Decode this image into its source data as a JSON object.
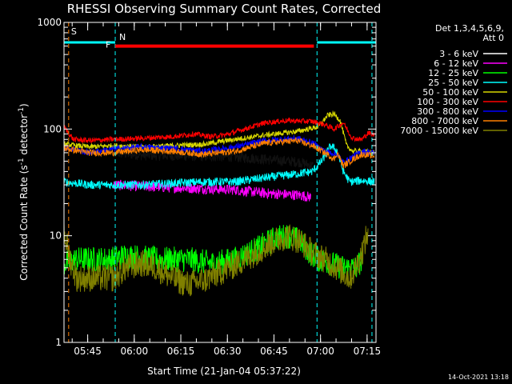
{
  "chart_data": {
    "type": "line",
    "title": "RHESSI Observing Summary Count Rates, Corrected",
    "xlabel": "Start Time (21-Jan-04 05:37:22)",
    "ylabel_main": "Corrected Count Rate (s",
    "ylabel_sup1": "-1",
    "ylabel_mid": " detector",
    "ylabel_sup2": "-1",
    "ylabel_end": ")",
    "yscale": "log",
    "ylim": [
      1,
      1000
    ],
    "y_ticks": [
      {
        "value": 1,
        "label": "1"
      },
      {
        "value": 10,
        "label": "10"
      },
      {
        "value": 100,
        "label": "100"
      },
      {
        "value": 1000,
        "label": "1000"
      }
    ],
    "xlim_minutes": [
      0,
      100.5
    ],
    "x_ticks": [
      {
        "minute": 7.63,
        "label": "05:45"
      },
      {
        "minute": 22.63,
        "label": "06:00"
      },
      {
        "minute": 37.63,
        "label": "06:15"
      },
      {
        "minute": 52.63,
        "label": "06:30"
      },
      {
        "minute": 67.63,
        "label": "06:45"
      },
      {
        "minute": 82.63,
        "label": "07:00"
      },
      {
        "minute": 97.63,
        "label": "07:15"
      }
    ],
    "legend_header": [
      "Det 1,3,4,5,6,9,",
      "Att 0"
    ],
    "series": [
      {
        "name": "3 - 6 keV",
        "color": "#000000",
        "points": [
          [
            16,
            60
          ],
          [
            25,
            57
          ],
          [
            40,
            56
          ],
          [
            55,
            55
          ],
          [
            65,
            52
          ],
          [
            76,
            49
          ],
          [
            79,
            46
          ],
          [
            80.3,
            45
          ]
        ]
      },
      {
        "name": "6 - 12 keV",
        "color": "#ff00ff",
        "points": [
          [
            16,
            30
          ],
          [
            25,
            29
          ],
          [
            40,
            28
          ],
          [
            55,
            27
          ],
          [
            65,
            25
          ],
          [
            76,
            24
          ],
          [
            79.5,
            23
          ]
        ]
      },
      {
        "name": "12 - 25 keV",
        "color": "#00ff00",
        "points": [
          [
            0,
            5.5
          ],
          [
            4,
            6
          ],
          [
            8,
            6
          ],
          [
            15,
            6
          ],
          [
            20,
            6.5
          ],
          [
            30,
            6
          ],
          [
            40,
            6
          ],
          [
            48,
            5.5
          ],
          [
            55,
            6
          ],
          [
            62,
            7.5
          ],
          [
            68,
            9.5
          ],
          [
            72,
            10
          ],
          [
            76,
            9
          ],
          [
            79,
            7
          ],
          [
            82,
            6
          ],
          [
            86,
            5.5
          ],
          [
            90,
            5
          ],
          [
            94,
            5
          ],
          [
            96,
            6
          ]
        ]
      },
      {
        "name": "25 - 50 keV",
        "color": "#00ffff",
        "points": [
          [
            0,
            32
          ],
          [
            8,
            30
          ],
          [
            16,
            30
          ],
          [
            25,
            30
          ],
          [
            35,
            31
          ],
          [
            45,
            32
          ],
          [
            55,
            32
          ],
          [
            65,
            35
          ],
          [
            75,
            38
          ],
          [
            80,
            40
          ],
          [
            83,
            50
          ],
          [
            86,
            70
          ],
          [
            88,
            62
          ],
          [
            90,
            40
          ],
          [
            92,
            32
          ],
          [
            96,
            33
          ],
          [
            100,
            32
          ]
        ]
      },
      {
        "name": "50 - 100 keV",
        "color": "#d8d800",
        "points": [
          [
            0,
            72
          ],
          [
            8,
            68
          ],
          [
            16,
            70
          ],
          [
            25,
            68
          ],
          [
            35,
            70
          ],
          [
            45,
            72
          ],
          [
            55,
            80
          ],
          [
            65,
            88
          ],
          [
            75,
            95
          ],
          [
            82,
            105
          ],
          [
            85,
            135
          ],
          [
            87,
            138
          ],
          [
            89,
            120
          ],
          [
            91,
            70
          ],
          [
            93,
            62
          ],
          [
            96,
            62
          ],
          [
            100,
            60
          ]
        ]
      },
      {
        "name": "100 - 300 keV",
        "color": "#ff0000",
        "points": [
          [
            0,
            105
          ],
          [
            3,
            80
          ],
          [
            8,
            78
          ],
          [
            16,
            80
          ],
          [
            25,
            82
          ],
          [
            35,
            85
          ],
          [
            42,
            90
          ],
          [
            47,
            85
          ],
          [
            52,
            88
          ],
          [
            58,
            100
          ],
          [
            65,
            115
          ],
          [
            72,
            120
          ],
          [
            80,
            118
          ],
          [
            84,
            110
          ],
          [
            87,
            100
          ],
          [
            88,
            105
          ],
          [
            90,
            115
          ],
          [
            92,
            90
          ],
          [
            93,
            82
          ],
          [
            96,
            80
          ],
          [
            98,
            92
          ],
          [
            100,
            88
          ]
        ]
      },
      {
        "name": "300 - 800 keV",
        "color": "#0000ff",
        "points": [
          [
            0,
            68
          ],
          [
            8,
            60
          ],
          [
            16,
            65
          ],
          [
            25,
            68
          ],
          [
            35,
            66
          ],
          [
            45,
            62
          ],
          [
            55,
            68
          ],
          [
            65,
            78
          ],
          [
            75,
            82
          ],
          [
            80,
            74
          ],
          [
            84,
            62
          ],
          [
            86,
            60
          ],
          [
            88,
            58
          ],
          [
            90,
            48
          ],
          [
            93,
            55
          ],
          [
            96,
            62
          ],
          [
            100,
            60
          ]
        ]
      },
      {
        "name": "800 - 7000 keV",
        "color": "#ff8000",
        "points": [
          [
            0,
            66
          ],
          [
            8,
            60
          ],
          [
            16,
            60
          ],
          [
            25,
            64
          ],
          [
            35,
            62
          ],
          [
            45,
            58
          ],
          [
            55,
            62
          ],
          [
            65,
            74
          ],
          [
            75,
            78
          ],
          [
            80,
            70
          ],
          [
            84,
            60
          ],
          [
            86,
            55
          ],
          [
            87,
            52
          ],
          [
            88,
            60
          ],
          [
            90,
            45
          ],
          [
            93,
            52
          ],
          [
            96,
            58
          ],
          [
            100,
            56
          ]
        ]
      },
      {
        "name": "7000 - 15000 keV",
        "color": "#808000",
        "points": [
          [
            0,
            11
          ],
          [
            2,
            6
          ],
          [
            4,
            4
          ],
          [
            8,
            4
          ],
          [
            12,
            4
          ],
          [
            16,
            4
          ],
          [
            20,
            5
          ],
          [
            25,
            5.5
          ],
          [
            30,
            5
          ],
          [
            35,
            4
          ],
          [
            40,
            3.5
          ],
          [
            45,
            3.8
          ],
          [
            50,
            4.5
          ],
          [
            56,
            5.5
          ],
          [
            62,
            7
          ],
          [
            68,
            9
          ],
          [
            72,
            10
          ],
          [
            76,
            9
          ],
          [
            80,
            7
          ],
          [
            84,
            6
          ],
          [
            88,
            5
          ],
          [
            92,
            4
          ],
          [
            94,
            5
          ],
          [
            96,
            7
          ],
          [
            98,
            11
          ]
        ]
      }
    ],
    "annotations": {
      "S": {
        "label": "S",
        "color": "#ff8000",
        "minute": 1.5
      },
      "N": {
        "label": "N",
        "color": "#00ffff",
        "minute": 16.5
      },
      "F": {
        "label": "F",
        "color": "#ff0000",
        "minute": 16.5,
        "end_minute": 80.5,
        "value": 600
      },
      "night": {
        "color": "#00ffff",
        "value": 650,
        "segments": [
          [
            0,
            16.5
          ],
          [
            81.5,
            100.5
          ]
        ],
        "boundaries": [
          16.5,
          81.5,
          99.2
        ]
      }
    },
    "stamp": "14-Oct-2021 13:18"
  }
}
